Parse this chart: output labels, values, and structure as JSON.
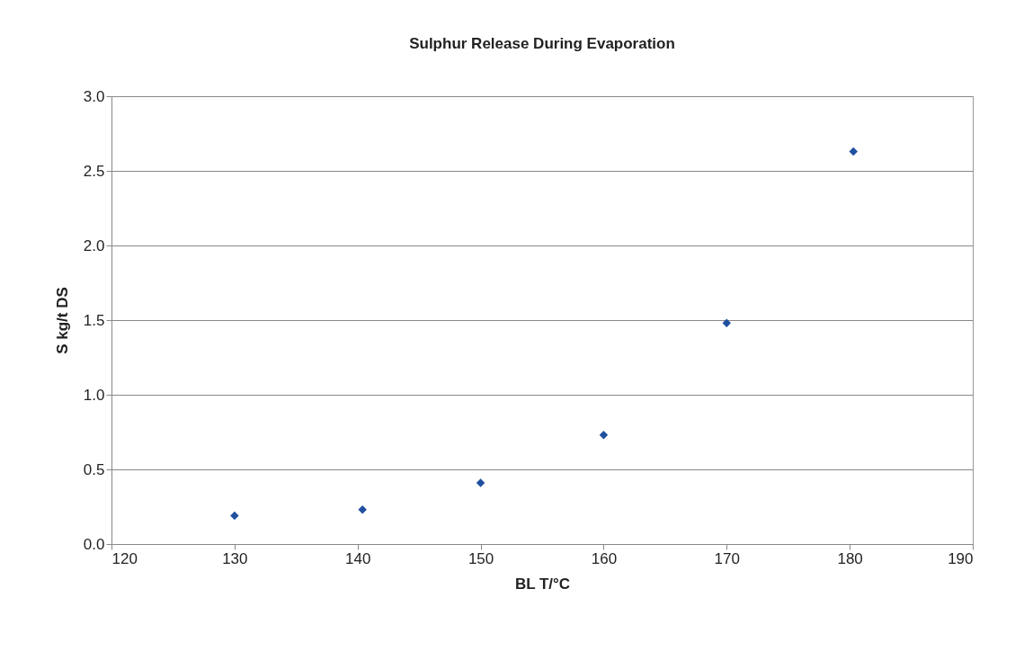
{
  "chart_data": {
    "type": "scatter",
    "title": "Sulphur Release During Evaporation",
    "xlabel": "BL T/°C",
    "ylabel": "S kg/t DS",
    "x": [
      130,
      140.4,
      150,
      160,
      170,
      180.3
    ],
    "series": [
      {
        "color": "#1f4f9f",
        "values": [
          0.19,
          0.23,
          0.41,
          0.73,
          1.48,
          2.63
        ]
      }
    ],
    "xlim": [
      120,
      190
    ],
    "xticks": [
      120,
      130,
      140,
      150,
      160,
      170,
      180,
      190
    ],
    "ylim": [
      0,
      3
    ],
    "yticks": [
      {
        "value": 0,
        "label": "0.0"
      },
      {
        "value": 0.5,
        "label": "0.5"
      },
      {
        "value": 1,
        "label": "1.0"
      },
      {
        "value": 1.5,
        "label": "1.5"
      },
      {
        "value": 2,
        "label": "2.0"
      },
      {
        "value": 2.5,
        "label": "2.5"
      },
      {
        "value": 3,
        "label": "3.0"
      }
    ],
    "grid": "y",
    "marker": "diamond"
  }
}
